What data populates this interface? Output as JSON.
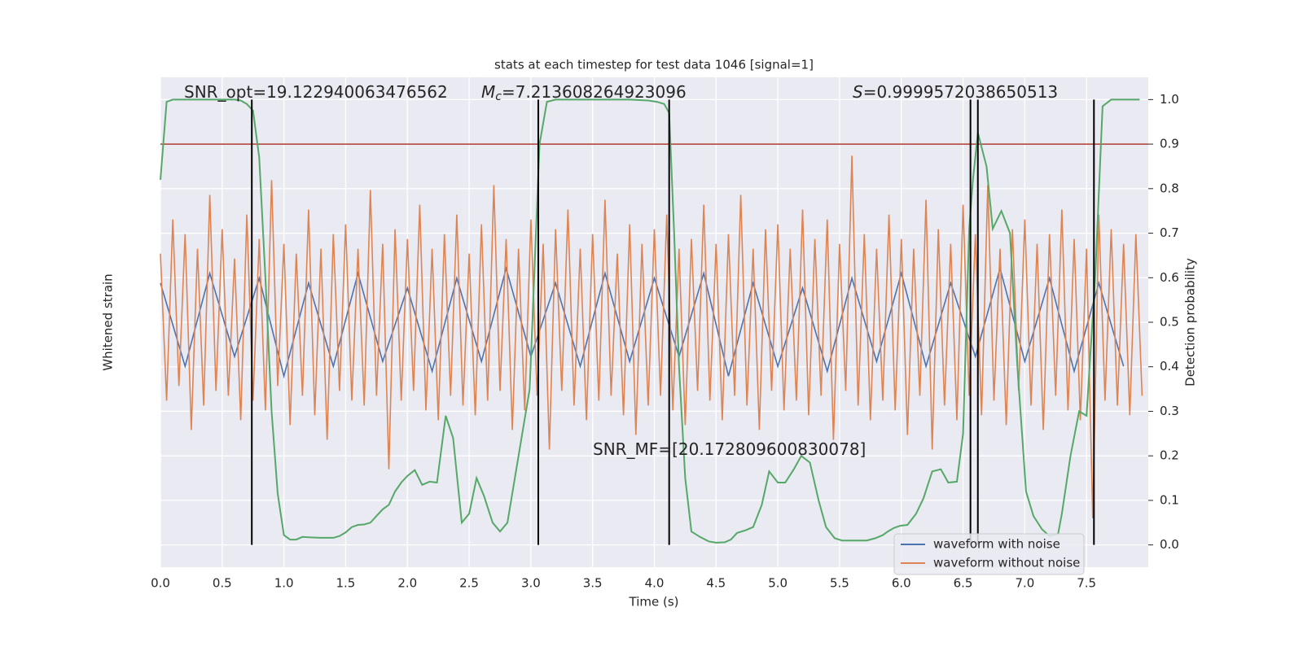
{
  "chart_data": {
    "type": "line",
    "title": "stats at each timestep for test data 1046 [signal=1]",
    "xlabel": "Time (s)",
    "ylabel": "Whitened strain",
    "y2label": "Detection probability",
    "annotations": [
      {
        "text": "SNR_opt=19.122940063476562"
      },
      {
        "symbol": "M",
        "sub": "c",
        "text": "=7.213608264923096"
      },
      {
        "symbol": "S",
        "text": "=0.9999572038650513"
      },
      {
        "text": "SNR_MF=[20.172809600830078]"
      }
    ],
    "xlim": [
      0,
      8
    ],
    "xticks": [
      {
        "value": 0,
        "label": "0.0"
      },
      0.5,
      {
        "value": 1,
        "label": "1.0"
      },
      1.5,
      {
        "value": 2,
        "label": "2.0"
      },
      2.5,
      {
        "value": 3,
        "label": "3.0"
      },
      3.5,
      {
        "value": 4,
        "label": "4.0"
      },
      4.5,
      {
        "value": 5,
        "label": "5.0"
      },
      5.5,
      {
        "value": 6,
        "label": "6.0"
      },
      6.5,
      {
        "value": 7,
        "label": "7.0"
      },
      7.5
    ],
    "ylim": [
      -5,
      5
    ],
    "y2lim": [
      -0.05,
      1.05
    ],
    "y2ticks": [
      {
        "value": 0,
        "label": "0.0"
      },
      0.1,
      0.2,
      0.3,
      0.4,
      0.5,
      0.6,
      0.7,
      0.8,
      0.9,
      {
        "value": 1,
        "label": "1.0"
      }
    ],
    "grid": true,
    "legend": "lower right",
    "series": [
      {
        "name": "waveform with noise",
        "color": "#4c72b0",
        "x": [
          0,
          0.2,
          0.4,
          0.6,
          0.8,
          1,
          1.2,
          1.4,
          1.6,
          1.8,
          2,
          2.2,
          2.4,
          2.6,
          2.8,
          3,
          3.2,
          3.4,
          3.6,
          3.8,
          4,
          4.2,
          4.4,
          4.6,
          4.8,
          5,
          5.2,
          5.4,
          5.6,
          5.8,
          6,
          6.2,
          6.4,
          6.6,
          6.8,
          7,
          7.2,
          7.4,
          7.6,
          7.8
        ],
        "values": [
          0.8,
          -0.9,
          1.0,
          -0.7,
          0.9,
          -1.1,
          0.8,
          -0.9,
          1.0,
          -0.8,
          0.7,
          -1.0,
          0.9,
          -0.8,
          1.1,
          -0.7,
          0.8,
          -0.9,
          1.0,
          -0.8,
          0.9,
          -0.7,
          1.0,
          -1.1,
          0.8,
          -0.9,
          0.7,
          -1.0,
          0.9,
          -0.8,
          1.0,
          -0.9,
          0.8,
          -0.7,
          1.1,
          -0.8,
          0.9,
          -1.0,
          0.8,
          -0.9
        ]
      },
      {
        "name": "waveform without noise",
        "color": "#dd8452",
        "x": [
          0,
          0.05,
          0.1,
          0.15,
          0.2,
          0.25,
          0.3,
          0.35,
          0.4,
          0.45,
          0.5,
          0.55,
          0.6,
          0.65,
          0.7,
          0.75,
          0.8,
          0.85,
          0.9,
          0.95,
          1,
          1.05,
          1.1,
          1.15,
          1.2,
          1.25,
          1.3,
          1.35,
          1.4,
          1.45,
          1.5,
          1.55,
          1.6,
          1.65,
          1.7,
          1.75,
          1.8,
          1.85,
          1.9,
          1.95,
          2,
          2.05,
          2.1,
          2.15,
          2.2,
          2.25,
          2.3,
          2.35,
          2.4,
          2.45,
          2.5,
          2.55,
          2.6,
          2.65,
          2.7,
          2.75,
          2.8,
          2.85,
          2.9,
          2.95,
          3,
          3.05,
          3.1,
          3.15,
          3.2,
          3.25,
          3.3,
          3.35,
          3.4,
          3.45,
          3.5,
          3.55,
          3.6,
          3.65,
          3.7,
          3.75,
          3.8,
          3.85,
          3.9,
          3.95,
          4,
          4.05,
          4.1,
          4.15,
          4.2,
          4.25,
          4.3,
          4.35,
          4.4,
          4.45,
          4.5,
          4.55,
          4.6,
          4.65,
          4.7,
          4.75,
          4.8,
          4.85,
          4.9,
          4.95,
          5,
          5.05,
          5.1,
          5.15,
          5.2,
          5.25,
          5.3,
          5.35,
          5.4,
          5.45,
          5.5,
          5.55,
          5.6,
          5.65,
          5.7,
          5.75,
          5.8,
          5.85,
          5.9,
          5.95,
          6,
          6.05,
          6.1,
          6.15,
          6.2,
          6.25,
          6.3,
          6.35,
          6.4,
          6.45,
          6.5,
          6.55,
          6.6,
          6.65,
          6.7,
          6.75,
          6.8,
          6.85,
          6.9,
          6.95,
          7,
          7.05,
          7.1,
          7.15,
          7.2,
          7.25,
          7.3,
          7.35,
          7.4,
          7.45,
          7.5,
          7.55,
          7.6,
          7.65,
          7.7,
          7.75,
          7.8,
          7.85,
          7.9,
          7.95
        ],
        "values": [
          1.4,
          -1.6,
          2.1,
          -1.3,
          1.8,
          -2.2,
          1.5,
          -1.7,
          2.6,
          -1.4,
          1.9,
          -1.5,
          1.3,
          -2.0,
          2.2,
          -1.6,
          1.7,
          -1.8,
          2.9,
          -1.3,
          1.6,
          -2.1,
          1.4,
          -1.5,
          2.3,
          -1.9,
          1.5,
          -2.4,
          1.8,
          -1.4,
          2.0,
          -1.6,
          1.5,
          -1.7,
          2.7,
          -1.5,
          1.6,
          -3.0,
          1.9,
          -1.6,
          1.7,
          -1.4,
          2.4,
          -1.8,
          1.5,
          -2.0,
          1.8,
          -1.5,
          2.2,
          -1.7,
          1.4,
          -1.9,
          2.0,
          -1.6,
          2.8,
          -1.4,
          1.7,
          -2.2,
          1.5,
          -1.8,
          2.1,
          -1.5,
          1.6,
          -2.6,
          1.9,
          -1.4,
          2.3,
          -1.7,
          1.5,
          -2.0,
          1.8,
          -1.6,
          2.5,
          -1.5,
          1.4,
          -1.9,
          2.0,
          -2.3,
          1.6,
          -1.7,
          1.9,
          -1.5,
          2.2,
          -1.8,
          1.5,
          -2.1,
          1.7,
          -1.4,
          2.4,
          -1.6,
          1.6,
          -2.0,
          1.8,
          -1.5,
          2.6,
          -1.7,
          1.5,
          -2.2,
          1.9,
          -1.4,
          2.0,
          -1.8,
          1.5,
          -1.6,
          2.3,
          -1.9,
          1.7,
          -1.5,
          2.1,
          -2.4,
          1.6,
          -1.4,
          3.4,
          -1.7,
          1.8,
          -2.0,
          1.5,
          -1.6,
          2.2,
          -1.8,
          1.7,
          -2.3,
          1.5,
          -1.5,
          2.5,
          -2.6,
          1.9,
          -1.7,
          1.6,
          -2.0,
          2.4,
          -1.5,
          1.8,
          -1.9,
          2.8,
          -1.6,
          1.5,
          -2.1,
          1.9,
          -1.4,
          2.1,
          -1.7,
          1.6,
          -2.2,
          1.8,
          -1.5,
          2.3,
          -1.8,
          1.7,
          -2.0,
          1.5,
          -4.0,
          2.2,
          -1.6,
          1.9,
          -1.7,
          1.6,
          -1.9,
          1.8,
          -1.5
        ]
      }
    ],
    "probability": {
      "color": "#55a868",
      "axis": "y2",
      "x": [
        0,
        0.05,
        0.1,
        0.2,
        0.3,
        0.4,
        0.5,
        0.6,
        0.65,
        0.7,
        0.75,
        0.8,
        0.85,
        0.9,
        0.95,
        1,
        1.05,
        1.1,
        1.15,
        1.2,
        1.3,
        1.4,
        1.45,
        1.5,
        1.55,
        1.6,
        1.65,
        1.7,
        1.75,
        1.8,
        1.85,
        1.9,
        1.95,
        2,
        2.06,
        2.12,
        2.18,
        2.24,
        2.31,
        2.37,
        2.44,
        2.5,
        2.56,
        2.62,
        2.69,
        2.75,
        2.81,
        2.87,
        2.93,
        2.99,
        3.07,
        3.13,
        3.2,
        3.4,
        3.6,
        3.8,
        3.95,
        4.02,
        4.08,
        4.12,
        4.16,
        4.2,
        4.25,
        4.3,
        4.37,
        4.44,
        4.5,
        4.57,
        4.62,
        4.67,
        4.74,
        4.8,
        4.87,
        4.93,
        5,
        5.06,
        5.13,
        5.19,
        5.26,
        5.33,
        5.39,
        5.46,
        5.52,
        5.6,
        5.72,
        5.79,
        5.85,
        5.89,
        5.94,
        5.99,
        6.05,
        6.12,
        6.18,
        6.25,
        6.32,
        6.38,
        6.45,
        6.5,
        6.55,
        6.58,
        6.62,
        6.69,
        6.74,
        6.81,
        6.88,
        6.94,
        7.01,
        7.07,
        7.14,
        7.2,
        7.27,
        7.3,
        7.37,
        7.44,
        7.5,
        7.57,
        7.63,
        7.7,
        7.8,
        7.93
      ],
      "values": [
        0.82,
        0.995,
        1,
        1,
        1,
        1,
        1,
        1,
        0.998,
        0.99,
        0.975,
        0.87,
        0.6,
        0.3,
        0.115,
        0.022,
        0.012,
        0.012,
        0.018,
        0.017,
        0.016,
        0.016,
        0.02,
        0.028,
        0.04,
        0.045,
        0.046,
        0.05,
        0.065,
        0.08,
        0.09,
        0.12,
        0.14,
        0.155,
        0.168,
        0.135,
        0.142,
        0.14,
        0.29,
        0.24,
        0.05,
        0.07,
        0.15,
        0.11,
        0.05,
        0.03,
        0.05,
        0.15,
        0.25,
        0.35,
        0.9,
        0.995,
        1,
        1,
        1,
        1,
        0.998,
        0.995,
        0.99,
        0.97,
        0.7,
        0.4,
        0.15,
        0.03,
        0.018,
        0.008,
        0.005,
        0.006,
        0.012,
        0.027,
        0.033,
        0.04,
        0.09,
        0.165,
        0.14,
        0.14,
        0.17,
        0.2,
        0.185,
        0.1,
        0.04,
        0.015,
        0.01,
        0.01,
        0.01,
        0.015,
        0.022,
        0.03,
        0.038,
        0.043,
        0.045,
        0.07,
        0.105,
        0.165,
        0.17,
        0.14,
        0.142,
        0.25,
        0.71,
        0.82,
        0.925,
        0.85,
        0.71,
        0.75,
        0.7,
        0.4,
        0.12,
        0.065,
        0.035,
        0.02,
        0.025,
        0.07,
        0.2,
        0.3,
        0.29,
        0.6,
        0.985,
        1,
        1,
        1
      ]
    },
    "threshold": {
      "value": 0.9,
      "color": "#b03a2e",
      "axis": "y2"
    },
    "vlines": {
      "x": [
        0.74,
        3.06,
        4.12,
        6.56,
        6.62,
        7.56
      ],
      "color": "#000000"
    }
  }
}
